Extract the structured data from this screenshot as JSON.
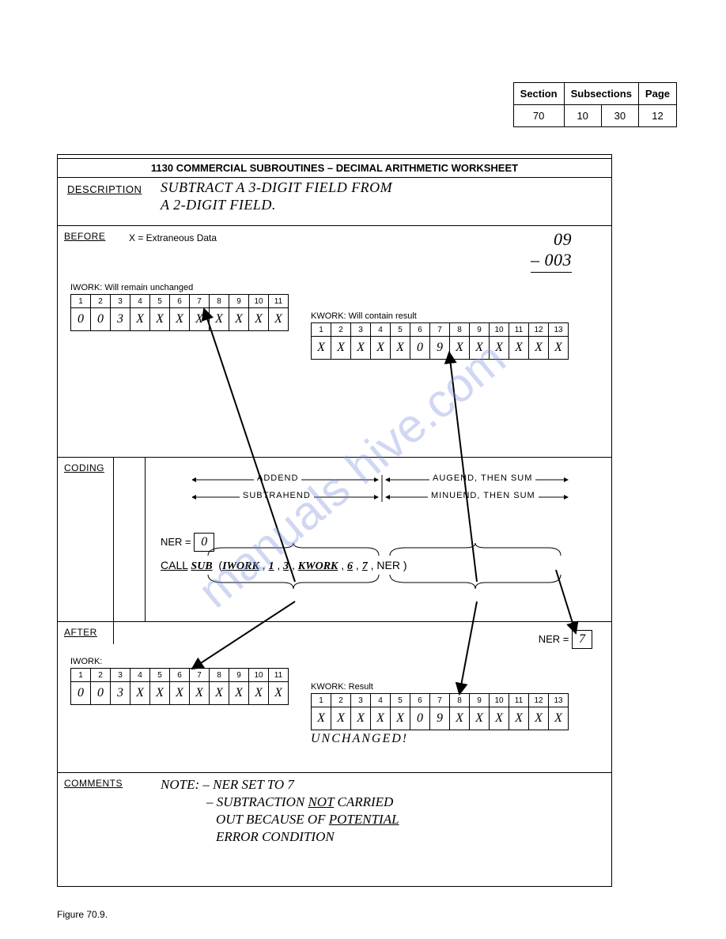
{
  "header": {
    "labels": {
      "section": "Section",
      "subsections": "Subsections",
      "page": "Page"
    },
    "section": "70",
    "sub1": "10",
    "sub2": "30",
    "page": "12"
  },
  "worksheet": {
    "title": "1130 COMMERCIAL SUBROUTINES – DECIMAL ARITHMETIC WORKSHEET",
    "description_label": "DESCRIPTION",
    "description_line1": "SUBTRACT A 3-DIGIT FIELD FROM",
    "description_line2": "A 2-DIGIT FIELD.",
    "before_label": "BEFORE",
    "extraneous": "X = Extraneous Data",
    "side_calc_top": "09",
    "side_calc_bottom": "– 003",
    "iwork_label_before": "IWORK:  Will remain unchanged",
    "iwork_headers": [
      "1",
      "2",
      "3",
      "4",
      "5",
      "6",
      "7",
      "8",
      "9",
      "10",
      "11"
    ],
    "iwork_values": [
      "0",
      "0",
      "3",
      "X",
      "X",
      "X",
      "X",
      "X",
      "X",
      "X",
      "X"
    ],
    "kwork_label_before": "KWORK:  Will contain result",
    "kwork_headers": [
      "1",
      "2",
      "3",
      "4",
      "5",
      "6",
      "7",
      "8",
      "9",
      "10",
      "11",
      "12",
      "13"
    ],
    "kwork_values": [
      "X",
      "X",
      "X",
      "X",
      "X",
      "0",
      "9",
      "X",
      "X",
      "X",
      "X",
      "X",
      "X"
    ],
    "coding_label": "CODING",
    "addend": "ADDEND",
    "augend": "AUGEND, THEN SUM",
    "subtrahend": "SUBTRAHEND",
    "minuend": "MINUEND, THEN SUM",
    "ner_label": "NER =",
    "ner_before": "0",
    "call_label": "CALL",
    "call_fn": "SUB",
    "call_p1": "IWORK",
    "call_p2": "1",
    "call_p3": "3",
    "call_p4": "KWORK",
    "call_p5": "6",
    "call_p6": "7",
    "call_p7": "NER",
    "after_label": "AFTER",
    "ner_after": "7",
    "iwork_label_after": "IWORK:",
    "kwork_label_after": "KWORK:  Result",
    "unchanged": "UNCHANGED!",
    "comments_label": "COMMENTS",
    "comments_l1": "NOTE: – NER SET TO 7",
    "comments_l2": "– SUBTRACTION",
    "comments_l2b": "NOT",
    "comments_l2c": "CARRIED",
    "comments_l3": "OUT BECAUSE OF",
    "comments_l3b": "POTENTIAL",
    "comments_l4": "ERROR CONDITION"
  },
  "figure_caption": "Figure 70.9.",
  "watermark": "manuals hive.com"
}
